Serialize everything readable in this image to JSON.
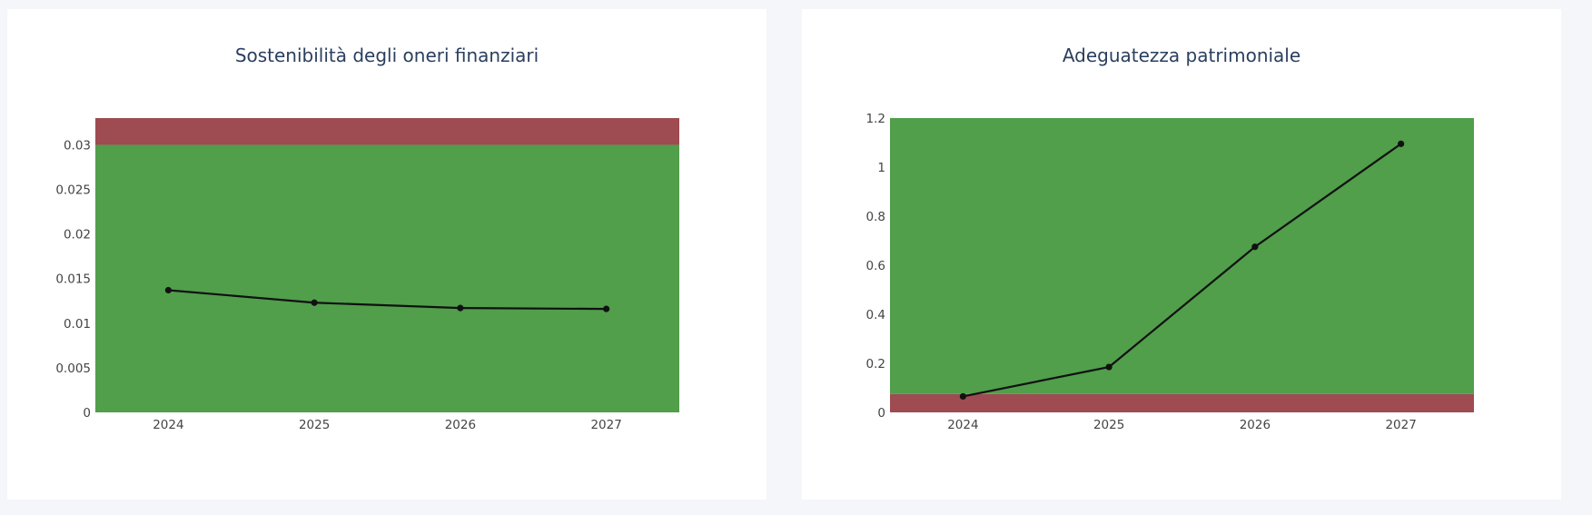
{
  "colors": {
    "page_background": "#f5f6fa",
    "card_background": "#ffffff",
    "good_zone": "#519e4b",
    "bad_zone": "#9e4b51",
    "line": "#111111"
  },
  "chart_data": [
    {
      "type": "line",
      "title": "Sostenibilità degli oneri finanziari",
      "xlabel": "",
      "ylabel": "",
      "x": [
        "2024",
        "2025",
        "2026",
        "2027"
      ],
      "values": [
        0.0137,
        0.0123,
        0.0117,
        0.0116
      ],
      "ylim": [
        0,
        0.033
      ],
      "yticks": [
        0,
        0.005,
        0.01,
        0.015,
        0.02,
        0.025,
        0.03
      ],
      "ytick_labels": [
        "0",
        "0.005",
        "0.01",
        "0.015",
        "0.02",
        "0.025",
        "0.03"
      ],
      "bands": [
        {
          "from": 0,
          "to": 0.03,
          "color": "#519e4b"
        },
        {
          "from": 0.03,
          "to": 0.033,
          "color": "#9e4b51"
        }
      ],
      "grid": false,
      "legend": "none",
      "line_color": "#111111",
      "markers": true
    },
    {
      "type": "line",
      "title": "Adeguatezza patrimoniale",
      "xlabel": "",
      "ylabel": "",
      "x": [
        "2024",
        "2025",
        "2026",
        "2027"
      ],
      "values": [
        0.065,
        0.185,
        0.675,
        1.095
      ],
      "ylim": [
        0,
        1.2
      ],
      "yticks": [
        0,
        0.2,
        0.4,
        0.6,
        0.8,
        1,
        1.2
      ],
      "ytick_labels": [
        "0",
        "0.2",
        "0.4",
        "0.6",
        "0.8",
        "1",
        "1.2"
      ],
      "bands": [
        {
          "from": 0,
          "to": 0.075,
          "color": "#9e4b51"
        },
        {
          "from": 0.075,
          "to": 1.2,
          "color": "#519e4b"
        }
      ],
      "grid": false,
      "legend": "none",
      "line_color": "#111111",
      "markers": true
    }
  ]
}
